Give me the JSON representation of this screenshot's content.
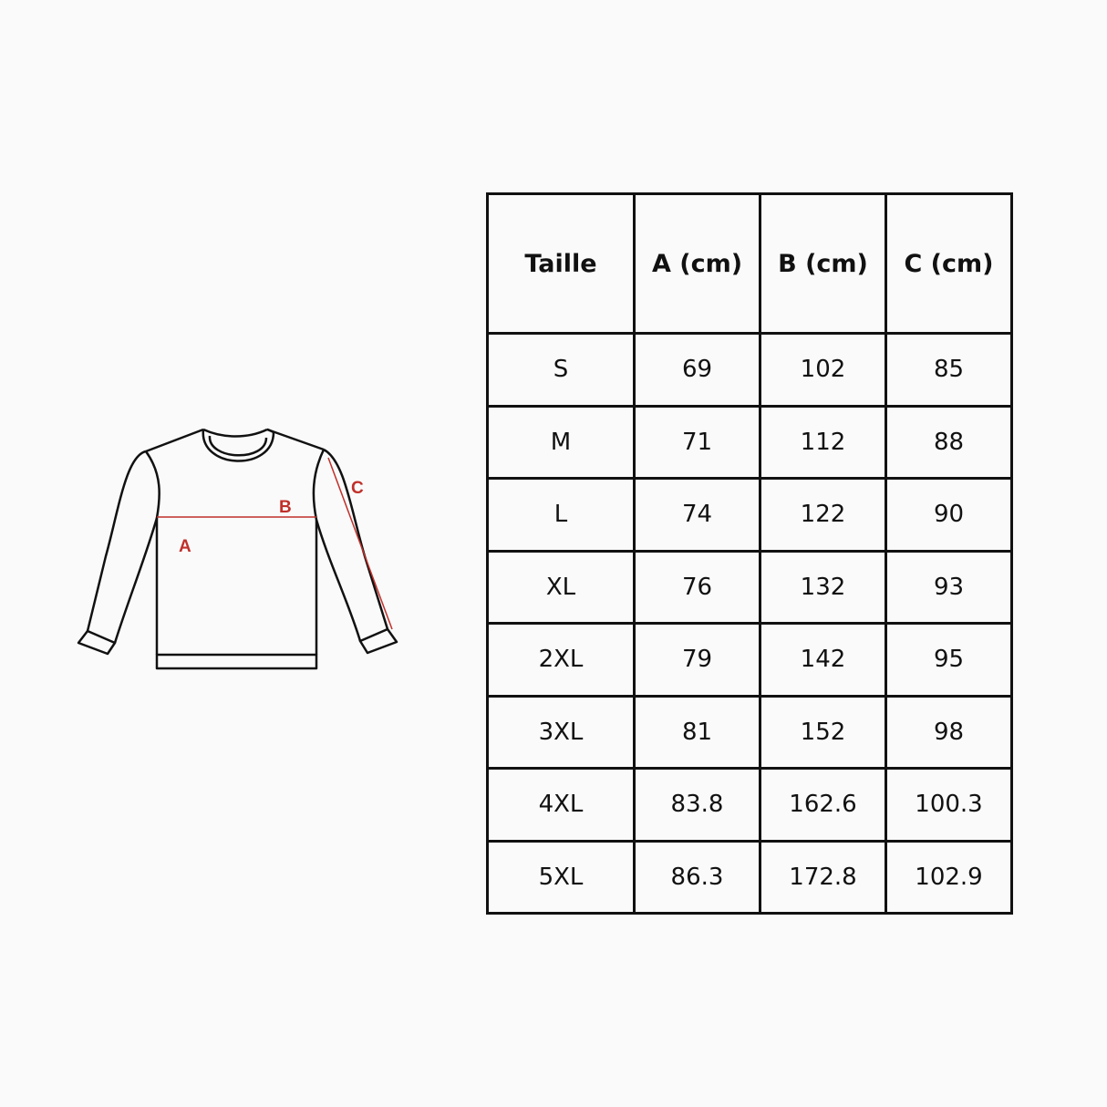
{
  "diagram": {
    "labels": [
      "A",
      "B",
      "C"
    ]
  },
  "table": {
    "header": [
      "Taille",
      "A (cm)",
      "B (cm)",
      "C (cm)"
    ],
    "rows": [
      [
        "S",
        "69",
        "102",
        "85"
      ],
      [
        "M",
        "71",
        "112",
        "88"
      ],
      [
        "L",
        "74",
        "122",
        "90"
      ],
      [
        "XL",
        "76",
        "132",
        "93"
      ],
      [
        "2XL",
        "79",
        "142",
        "95"
      ],
      [
        "3XL",
        "81",
        "152",
        "98"
      ],
      [
        "4XL",
        "83.8",
        "162.6",
        "100.3"
      ],
      [
        "5XL",
        "86.3",
        "172.8",
        "102.9"
      ]
    ]
  }
}
